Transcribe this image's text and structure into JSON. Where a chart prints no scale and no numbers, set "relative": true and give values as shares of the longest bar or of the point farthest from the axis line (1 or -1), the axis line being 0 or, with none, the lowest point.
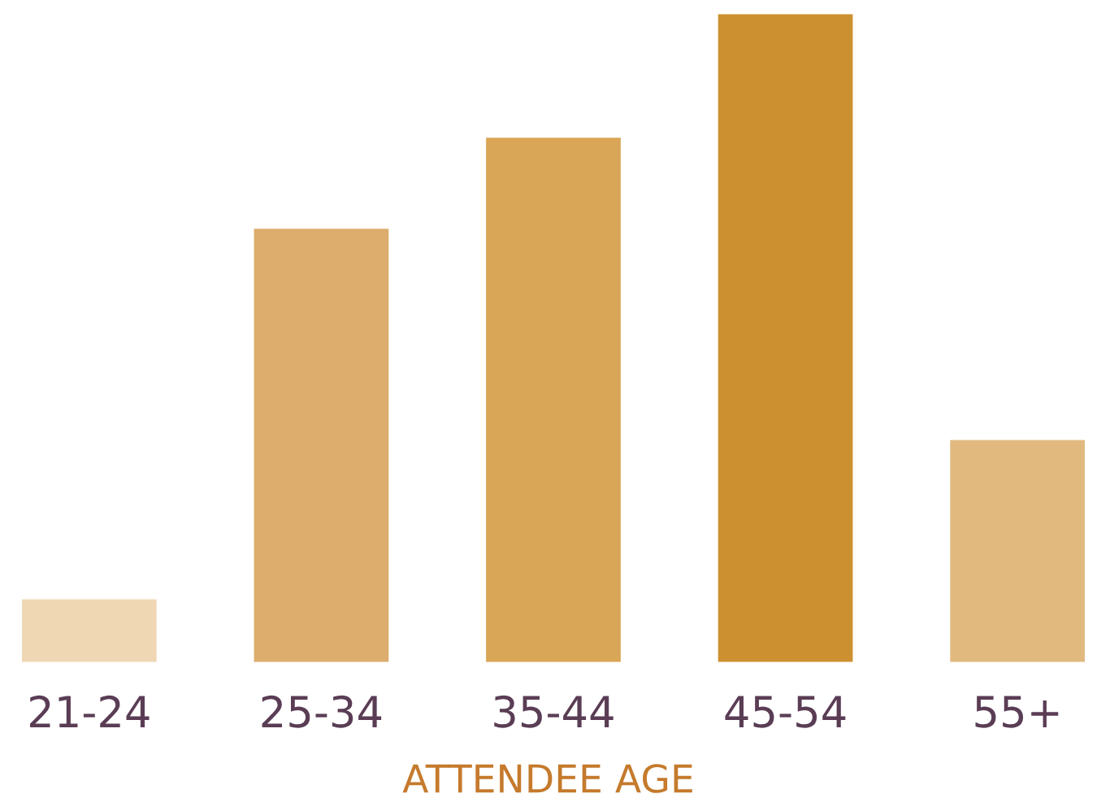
{
  "chart_data": {
    "type": "bar",
    "relative": true,
    "xlabel": "ATTENDEE AGE",
    "categories": [
      "21-24",
      "25-34",
      "35-44",
      "45-54",
      "55+"
    ],
    "values": [
      0.1,
      0.67,
      0.81,
      1,
      0.345
    ],
    "colors": [
      "#efd7b4",
      "#dcad6c",
      "#d9a556",
      "#cd9030",
      "#e1b97f"
    ],
    "grid": false,
    "legend": false
  }
}
